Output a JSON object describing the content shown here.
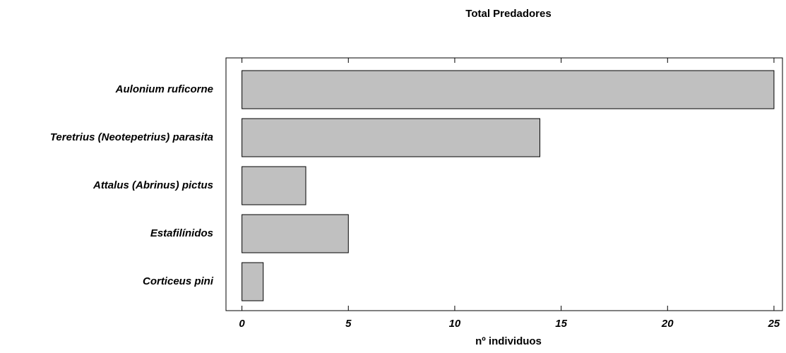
{
  "chart_data": {
    "type": "bar",
    "orientation": "horizontal",
    "title": "Total Predadores",
    "x_label": "nº individuos",
    "categories": [
      "Aulonium ruficorne",
      "Teretrius (Neotepetrius) parasita",
      "Attalus (Abrinus) pictus",
      "Estafilínidos",
      "Corticeus pini"
    ],
    "values": [
      25,
      14,
      3,
      5,
      1
    ],
    "color": "#c0c0c0",
    "xlim": [
      -0.75,
      25.4
    ],
    "xticks": [
      0,
      5,
      10,
      15,
      20,
      25
    ]
  }
}
